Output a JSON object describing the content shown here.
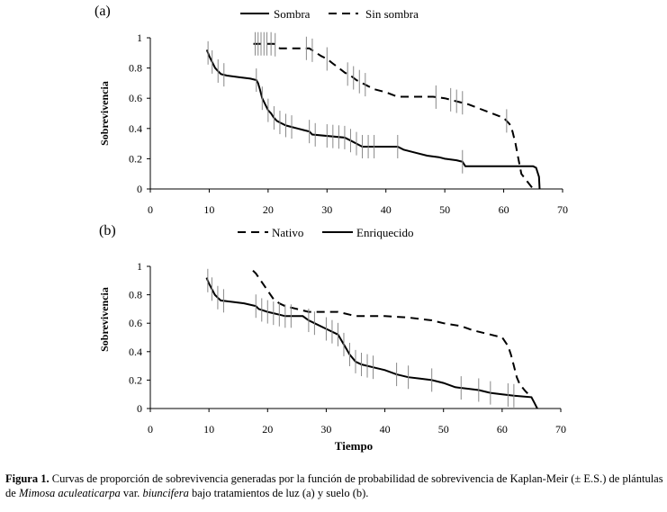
{
  "caption": {
    "label": "Figura 1.",
    "part1": "Curvas de proporción de sobrevivencia generadas por la función de probabilidad de sobrevivencia de Kaplan-Meir (± E.S.) de plántulas de ",
    "species": "Mimosa aculeaticarpa",
    "part2": " var. ",
    "variety": "biuncifera",
    "part3": " bajo tratamientos de luz (a) y suelo (b)."
  },
  "chart_data": [
    {
      "type": "line",
      "panel_label": "(a)",
      "ylabel": "Sobrevivencia",
      "xlabel": "",
      "xlim": [
        0,
        70
      ],
      "ylim": [
        0,
        1
      ],
      "xticks": [
        "0",
        "10",
        "20",
        "30",
        "40",
        "50",
        "60",
        "70"
      ],
      "yticks": [
        "0",
        "0.2",
        "0.4",
        "0.6",
        "0.8",
        "1"
      ],
      "legend": [
        "Sombra",
        "Sin sombra"
      ],
      "series": [
        {
          "name": "Sombra",
          "style": "solid",
          "x": [
            9.6,
            10,
            10.5,
            11,
            11.5,
            12,
            13,
            15,
            17,
            18,
            18.3,
            18.6,
            19,
            19.5,
            20,
            20.5,
            21,
            21.5,
            22,
            23,
            24,
            25,
            26,
            27,
            27.5,
            33,
            34,
            35,
            36,
            40,
            42,
            43,
            45,
            47,
            49,
            50,
            52,
            53,
            53.5,
            60,
            62,
            64,
            65,
            65.5,
            66,
            66.1
          ],
          "y": [
            0.92,
            0.88,
            0.84,
            0.8,
            0.78,
            0.76,
            0.75,
            0.74,
            0.73,
            0.72,
            0.7,
            0.66,
            0.6,
            0.56,
            0.52,
            0.5,
            0.47,
            0.45,
            0.44,
            0.42,
            0.41,
            0.4,
            0.39,
            0.38,
            0.36,
            0.34,
            0.32,
            0.3,
            0.28,
            0.28,
            0.28,
            0.26,
            0.24,
            0.22,
            0.21,
            0.2,
            0.19,
            0.18,
            0.15,
            0.15,
            0.15,
            0.15,
            0.15,
            0.14,
            0.08,
            0.0
          ],
          "error_bar_x": [
            9.8,
            10.5,
            11.5,
            12.5,
            18,
            19,
            20,
            21,
            22,
            23,
            24,
            27,
            28,
            30,
            31,
            32,
            33,
            34,
            35,
            36,
            37,
            38,
            42,
            53
          ]
        },
        {
          "name": "Sin sombra",
          "style": "dashed",
          "x": [
            17.5,
            21,
            22,
            23,
            25,
            27,
            29,
            30,
            31,
            32,
            33,
            34,
            35,
            36,
            37,
            38,
            40,
            42,
            45,
            48,
            50,
            52,
            54,
            56,
            58,
            60,
            61,
            61.5,
            62,
            62.5,
            63,
            64,
            65
          ],
          "y": [
            0.96,
            0.96,
            0.93,
            0.93,
            0.93,
            0.93,
            0.88,
            0.86,
            0.83,
            0.8,
            0.77,
            0.75,
            0.72,
            0.7,
            0.68,
            0.66,
            0.64,
            0.61,
            0.61,
            0.61,
            0.6,
            0.58,
            0.56,
            0.53,
            0.5,
            0.47,
            0.43,
            0.38,
            0.3,
            0.2,
            0.1,
            0.05,
            0.0
          ],
          "error_bar_x": [
            17.8,
            18.3,
            18.8,
            19.3,
            19.8,
            20.5,
            21.2,
            26.5,
            27.5,
            30,
            33.5,
            34.5,
            35.5,
            36.5,
            48.5,
            51,
            52,
            53,
            60.5
          ]
        }
      ]
    },
    {
      "type": "line",
      "panel_label": "(b)",
      "ylabel": "Sobrevivencia",
      "xlabel": "Tiempo",
      "xlim": [
        0,
        70
      ],
      "ylim": [
        0,
        1
      ],
      "xticks": [
        "0",
        "10",
        "20",
        "30",
        "40",
        "50",
        "60",
        "70"
      ],
      "yticks": [
        "0",
        "0.2",
        "0.4",
        "0.6",
        "0.8",
        "1"
      ],
      "legend": [
        "Nativo",
        "Enriquecido"
      ],
      "series": [
        {
          "name": "Nativo",
          "style": "dashed",
          "x": [
            17.5,
            18,
            18.5,
            19,
            19.5,
            20,
            20.5,
            21,
            22,
            23,
            24,
            25,
            26,
            27,
            28,
            30,
            32,
            33,
            34,
            35,
            36,
            40,
            44,
            48,
            50,
            53,
            55,
            58,
            60,
            61,
            61.5,
            62,
            62.5,
            63,
            64,
            65
          ],
          "y": [
            0.97,
            0.95,
            0.92,
            0.89,
            0.86,
            0.83,
            0.8,
            0.77,
            0.74,
            0.72,
            0.71,
            0.7,
            0.69,
            0.68,
            0.68,
            0.68,
            0.68,
            0.67,
            0.66,
            0.65,
            0.65,
            0.65,
            0.64,
            0.62,
            0.6,
            0.58,
            0.55,
            0.52,
            0.5,
            0.44,
            0.38,
            0.3,
            0.22,
            0.17,
            0.12,
            0.08
          ]
        },
        {
          "name": "Enriquecido",
          "style": "solid",
          "x": [
            9.6,
            10,
            10.5,
            11,
            11.5,
            12,
            14,
            16,
            18,
            18.5,
            20,
            21,
            22,
            23,
            24,
            26,
            27,
            28,
            30,
            32,
            33,
            34,
            35,
            36,
            38,
            40,
            42,
            44,
            46,
            48,
            50,
            52,
            54,
            56,
            58,
            60,
            62,
            65,
            65.5,
            66
          ],
          "y": [
            0.92,
            0.88,
            0.84,
            0.8,
            0.78,
            0.76,
            0.75,
            0.74,
            0.72,
            0.7,
            0.68,
            0.67,
            0.66,
            0.65,
            0.65,
            0.65,
            0.62,
            0.6,
            0.56,
            0.52,
            0.45,
            0.38,
            0.33,
            0.31,
            0.29,
            0.27,
            0.24,
            0.22,
            0.21,
            0.2,
            0.18,
            0.15,
            0.14,
            0.13,
            0.11,
            0.1,
            0.09,
            0.08,
            0.04,
            0.0
          ],
          "error_bar_x": [
            9.8,
            10.5,
            11.5,
            12.5,
            18,
            19,
            20,
            21,
            22,
            23,
            24,
            27,
            28,
            30,
            31,
            32,
            33,
            34,
            35,
            36,
            37,
            38,
            42,
            44,
            48,
            53,
            56,
            58,
            61,
            62
          ]
        }
      ]
    }
  ]
}
